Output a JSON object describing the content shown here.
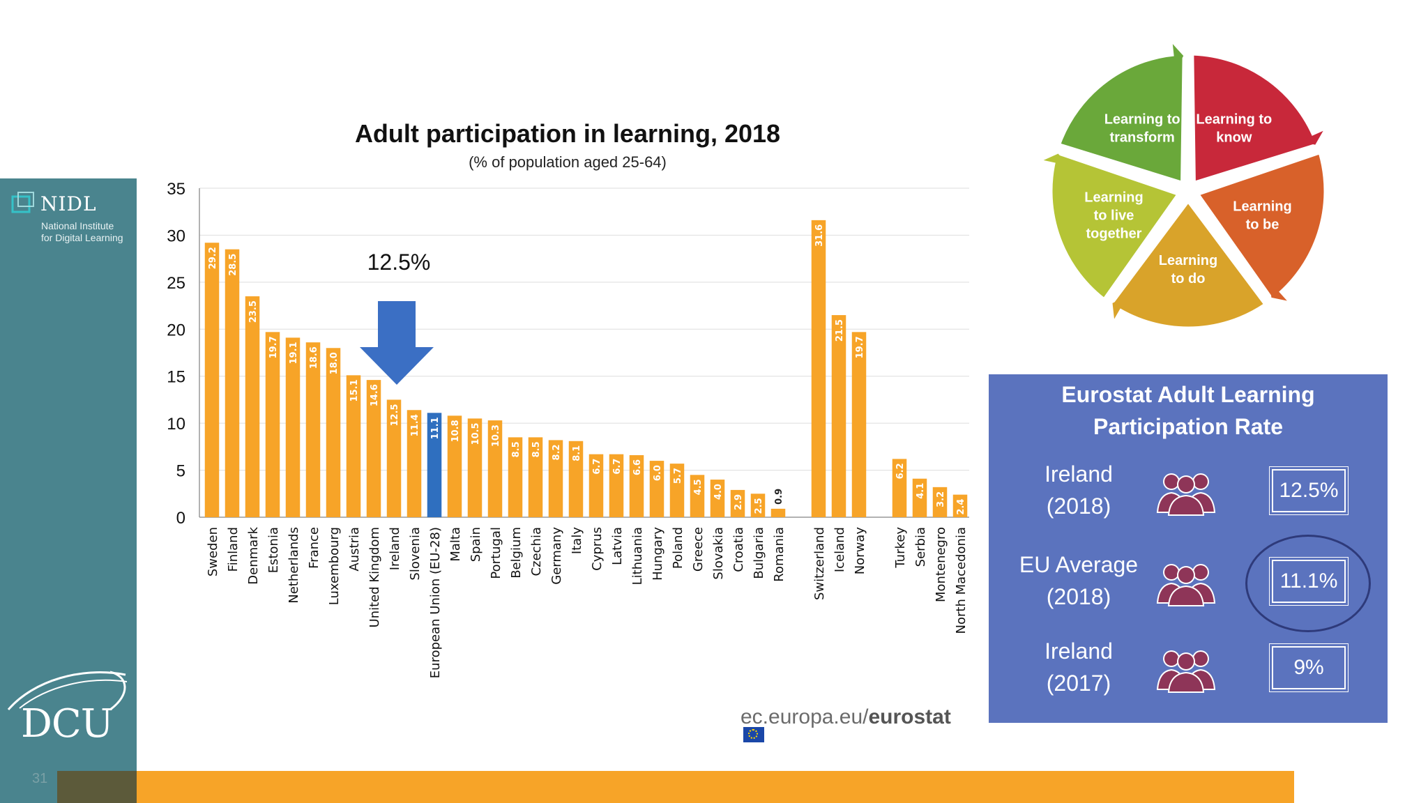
{
  "sidebar": {
    "nidl_wordmark": "NIDL",
    "nidl_subtitle_line1": "National Institute",
    "nidl_subtitle_line2": "for Digital Learning",
    "dcu_wordmark": "DCU",
    "slide_number": "31",
    "colors": {
      "teal": "#4a848e",
      "band": "#f7a428"
    }
  },
  "chart_data": {
    "type": "bar",
    "title": "Adult participation in learning, 2018",
    "subtitle": "(% of population aged 25-64)",
    "ylim": [
      0,
      35
    ],
    "yticks": [
      0,
      5,
      10,
      15,
      20,
      25,
      30,
      35
    ],
    "grid": true,
    "annotation": "12.5%",
    "annotation_arrow_target": "Ireland",
    "highlight_category": "European Union (EU-28)",
    "colors": {
      "bar": "#f7a428",
      "highlight": "#2f6fbf",
      "arrow": "#3b6fc4"
    },
    "groups": [
      {
        "categories": [
          "Sweden",
          "Finland",
          "Denmark",
          "Estonia",
          "Netherlands",
          "France",
          "Luxembourg",
          "Austria",
          "United Kingdom",
          "Ireland",
          "Slovenia",
          "European Union (EU-28)",
          "Malta",
          "Spain",
          "Portugal",
          "Belgium",
          "Czechia",
          "Germany",
          "Italy",
          "Cyprus",
          "Latvia",
          "Lithuania",
          "Hungary",
          "Poland",
          "Greece",
          "Slovakia",
          "Croatia",
          "Bulgaria",
          "Romania"
        ],
        "values": [
          29.2,
          28.5,
          23.5,
          19.7,
          19.1,
          18.6,
          18.0,
          15.1,
          14.6,
          12.5,
          11.4,
          11.1,
          10.8,
          10.5,
          10.3,
          8.5,
          8.5,
          8.2,
          8.1,
          6.7,
          6.7,
          6.6,
          6.0,
          5.7,
          4.5,
          4.0,
          2.9,
          2.5,
          0.9
        ]
      },
      {
        "categories": [
          "Switzerland",
          "Iceland",
          "Norway"
        ],
        "values": [
          31.6,
          21.5,
          19.7
        ]
      },
      {
        "categories": [
          "Turkey",
          "Serbia",
          "Montenegro",
          "North Macedonia"
        ],
        "values": [
          6.2,
          4.1,
          3.2,
          2.4
        ]
      }
    ]
  },
  "source": {
    "prefix": "ec.europa.eu/",
    "suffix": "eurostat"
  },
  "wheel": {
    "segments": [
      {
        "line1": "Learning to",
        "line2": "know",
        "line3": "",
        "color": "#c8283a"
      },
      {
        "line1": "Learning",
        "line2": "to be",
        "line3": "",
        "color": "#d8612a"
      },
      {
        "line1": "Learning",
        "line2": "to do",
        "line3": "",
        "color": "#d9a32a"
      },
      {
        "line1": "Learning",
        "line2": "to live",
        "line3": "together",
        "color": "#b5c436"
      },
      {
        "line1": "Learning to",
        "line2": "transform",
        "line3": "",
        "color": "#6aa83a"
      }
    ]
  },
  "panel": {
    "title_line1": "Eurostat Adult Learning",
    "title_line2": "Participation Rate",
    "background": "#5b73be",
    "icon_color": "#8e3558",
    "rows": [
      {
        "label_line1": "Ireland",
        "label_line2": "(2018)",
        "value": "12.5%",
        "icon": "group-icon"
      },
      {
        "label_line1": "EU Average",
        "label_line2": "(2018)",
        "value": "11.1%",
        "icon": "group-icon"
      },
      {
        "label_line1": "Ireland",
        "label_line2": "(2017)",
        "value": "9%",
        "icon": "group-icon"
      }
    ]
  }
}
